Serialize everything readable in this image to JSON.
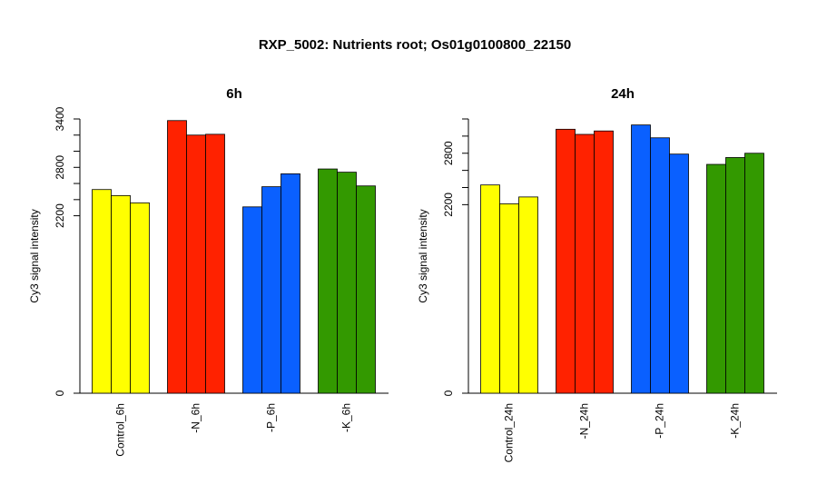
{
  "figure": {
    "title": "RXP_5002: Nutrients root; Os01g0100800_22150"
  },
  "chart_data": [
    {
      "type": "bar",
      "title": "6h",
      "ylabel": "Cy3 signal intensity",
      "xlabel": "",
      "ylim": [
        0,
        3400
      ],
      "yticks": [
        0,
        2200,
        2800,
        3400
      ],
      "yticks_minor": [
        2400,
        2600,
        3000,
        3200
      ],
      "grid": false,
      "categories": [
        "Control_6h",
        "-N_6h",
        "-P_6h",
        "-K_6h"
      ],
      "colors": [
        "#FFFF00",
        "#FF2200",
        "#0A60FF",
        "#339900"
      ],
      "values": [
        [
          2525,
          2450,
          2360
        ],
        [
          3380,
          3200,
          3210
        ],
        [
          2310,
          2560,
          2720
        ],
        [
          2780,
          2740,
          2570
        ]
      ]
    },
    {
      "type": "bar",
      "title": "24h",
      "ylabel": "Cy3 signal intensity",
      "xlabel": "",
      "ylim": [
        0,
        3200
      ],
      "yticks": [
        0,
        2200,
        2800
      ],
      "yticks_minor": [
        2400,
        2600,
        3000,
        3200
      ],
      "grid": false,
      "categories": [
        "Control_24h",
        "-N_24h",
        "-P_24h",
        "-K_24h"
      ],
      "colors": [
        "#FFFF00",
        "#FF2200",
        "#0A60FF",
        "#339900"
      ],
      "values": [
        [
          2430,
          2210,
          2290
        ],
        [
          3080,
          3020,
          3060
        ],
        [
          3130,
          2980,
          2790
        ],
        [
          2670,
          2750,
          2800
        ]
      ]
    }
  ]
}
